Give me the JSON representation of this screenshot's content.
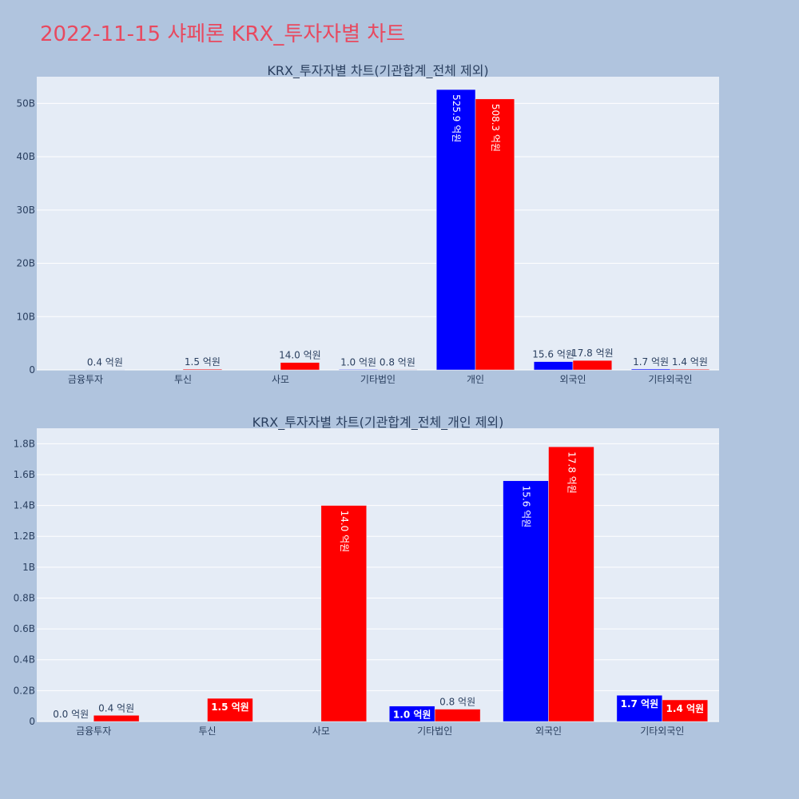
{
  "page_title": "2022-11-15 샤페론 KRX_투자자별 차트",
  "colors": {
    "series_a": "#0000ff",
    "series_b": "#ff0000"
  },
  "chart_data": [
    {
      "type": "bar",
      "title": "KRX_투자자별 차트(기관합계_전체 제외)",
      "categories": [
        "금융투자",
        "투신",
        "사모",
        "기타법인",
        "개인",
        "외국인",
        "기타외국인"
      ],
      "ylim": [
        0,
        55000000000
      ],
      "y_ticks": [
        0,
        10000000000,
        20000000000,
        30000000000,
        40000000000,
        50000000000
      ],
      "y_tick_labels": [
        "0",
        "10B",
        "20B",
        "30B",
        "40B",
        "50B"
      ],
      "grid": true,
      "series": [
        {
          "color": "#0000ff",
          "values": [
            null,
            null,
            null,
            100000000,
            52590000000,
            1560000000,
            170000000
          ],
          "labels": [
            "",
            "",
            "",
            "1.0 억원",
            "525.9 억원",
            "15.6 억원",
            "1.7 억원"
          ]
        },
        {
          "color": "#ff0000",
          "values": [
            40000000,
            150000000,
            1400000000,
            80000000,
            50830000000,
            1780000000,
            140000000
          ],
          "labels": [
            "0.4 억원",
            "1.5 억원",
            "14.0 억원",
            "0.8 억원",
            "508.3 억원",
            "17.8 억원",
            "1.4 억원"
          ]
        }
      ]
    },
    {
      "type": "bar",
      "title": "KRX_투자자별 차트(기관합계_전체_개인 제외)",
      "categories": [
        "금융투자",
        "투신",
        "사모",
        "기타법인",
        "외국인",
        "기타외국인"
      ],
      "ylim": [
        0,
        1900000000
      ],
      "y_ticks": [
        0,
        200000000,
        400000000,
        600000000,
        800000000,
        1000000000,
        1200000000,
        1400000000,
        1600000000,
        1800000000
      ],
      "y_tick_labels": [
        "0",
        "0.2B",
        "0.4B",
        "0.6B",
        "0.8B",
        "1B",
        "1.2B",
        "1.4B",
        "1.6B",
        "1.8B"
      ],
      "grid": true,
      "series": [
        {
          "color": "#0000ff",
          "values": [
            0,
            null,
            null,
            100000000,
            1560000000,
            170000000
          ],
          "labels": [
            "0.0 억원",
            "",
            "",
            "1.0 억원",
            "15.6 억원",
            "1.7 억원"
          ]
        },
        {
          "color": "#ff0000",
          "values": [
            40000000,
            150000000,
            1400000000,
            80000000,
            1780000000,
            140000000
          ],
          "labels": [
            "0.4 억원",
            "1.5 억원",
            "14.0 억원",
            "0.8 억원",
            "17.8 억원",
            "1.4 억원"
          ]
        }
      ]
    }
  ]
}
